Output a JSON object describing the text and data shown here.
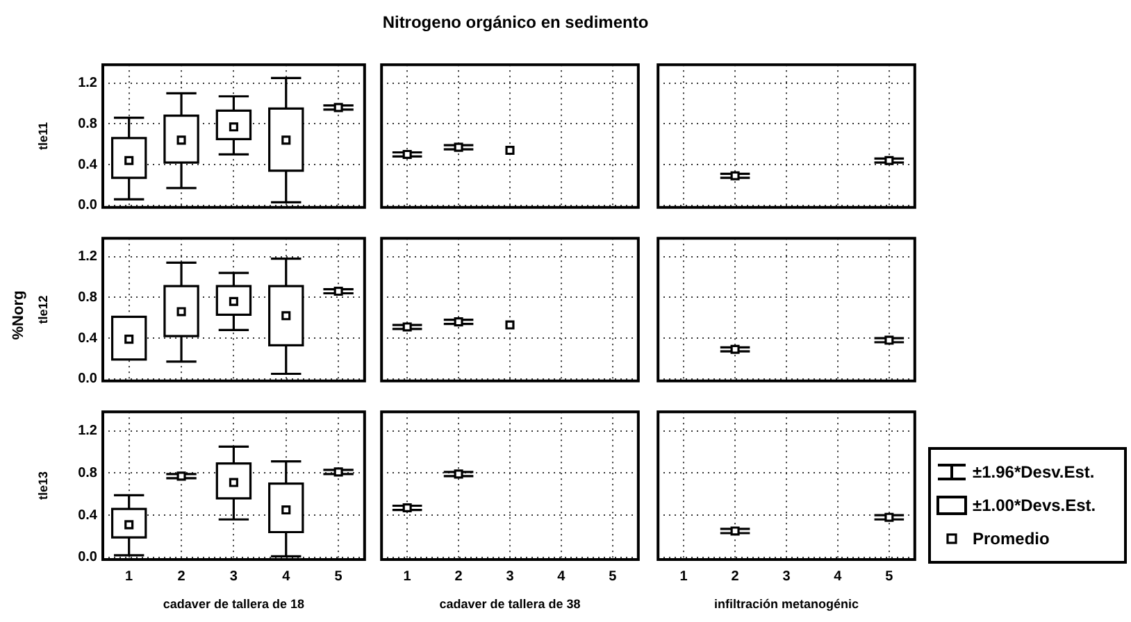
{
  "chart_data": [
    {
      "type": "box",
      "ylabel": "tle11",
      "categories": [
        "1",
        "2",
        "3",
        "4",
        "5"
      ],
      "boxes": [
        {
          "low": 0.06,
          "q1": 0.27,
          "median": 0.44,
          "q3": 0.66,
          "high": 0.86
        },
        {
          "low": 0.17,
          "q1": 0.42,
          "median": 0.64,
          "q3": 0.88,
          "high": 1.1
        },
        {
          "low": 0.5,
          "q1": 0.65,
          "median": 0.77,
          "q3": 0.93,
          "high": 1.07
        },
        {
          "low": 0.03,
          "q1": 0.34,
          "median": 0.64,
          "q3": 0.95,
          "high": 1.25
        },
        null
      ],
      "series": [
        {
          "type": "scatter",
          "values": [
            null,
            null,
            null,
            null,
            0.96
          ],
          "errors": [
            null,
            null,
            null,
            null,
            0.02
          ]
        }
      ],
      "marker": "square",
      "ylim": [
        -0.02,
        1.38
      ],
      "yticks": [
        {
          "value": 0,
          "label": "0.0"
        },
        {
          "value": 0.4,
          "label": "0.4"
        },
        {
          "value": 0.8,
          "label": "0.8"
        },
        {
          "value": 1.2,
          "label": "1.2"
        }
      ],
      "grid": true,
      "tick_labels": "y"
    },
    {
      "type": "scatter",
      "title": "Nitrogeno orgánico en sedimento",
      "categories": [
        "1",
        "2",
        "3",
        "4",
        "5"
      ],
      "values": [
        0.5,
        0.57,
        0.54,
        null,
        null
      ],
      "errors": [
        0.02,
        0.02,
        null,
        null,
        null
      ],
      "marker": "square",
      "ylim": [
        -0.02,
        1.38
      ],
      "yticks": [
        {
          "value": 0,
          "label": null
        },
        {
          "value": 0.4,
          "label": null
        },
        {
          "value": 0.8,
          "label": null
        },
        {
          "value": 1.2,
          "label": null
        }
      ],
      "grid": true,
      "tick_labels": false
    },
    {
      "type": "scatter",
      "categories": [
        "1",
        "2",
        "3",
        "4",
        "5"
      ],
      "values": [
        null,
        0.29,
        null,
        null,
        0.44
      ],
      "errors": [
        null,
        0.02,
        null,
        null,
        0.02
      ],
      "marker": "square",
      "ylim": [
        -0.02,
        1.38
      ],
      "yticks": [
        {
          "value": 0,
          "label": null
        },
        {
          "value": 0.4,
          "label": null
        },
        {
          "value": 0.8,
          "label": null
        },
        {
          "value": 1.2,
          "label": null
        }
      ],
      "grid": true,
      "tick_labels": false
    },
    {
      "type": "box",
      "ylabel": "tle12",
      "annotations": [
        "%Norg"
      ],
      "categories": [
        "1",
        "2",
        "3",
        "4",
        "5"
      ],
      "boxes": [
        {
          "low": 0.19,
          "q1": 0.19,
          "median": 0.39,
          "q3": 0.61,
          "high": 0.61
        },
        {
          "low": 0.17,
          "q1": 0.42,
          "median": 0.66,
          "q3": 0.91,
          "high": 1.14
        },
        {
          "low": 0.48,
          "q1": 0.63,
          "median": 0.76,
          "q3": 0.91,
          "high": 1.04
        },
        {
          "low": 0.05,
          "q1": 0.33,
          "median": 0.62,
          "q3": 0.91,
          "high": 1.18
        },
        null
      ],
      "series": [
        {
          "type": "scatter",
          "values": [
            null,
            null,
            null,
            null,
            0.86
          ],
          "errors": [
            null,
            null,
            null,
            null,
            0.02
          ]
        }
      ],
      "marker": "square",
      "ylim": [
        -0.02,
        1.38
      ],
      "yticks": [
        {
          "value": 0,
          "label": "0.0"
        },
        {
          "value": 0.4,
          "label": "0.4"
        },
        {
          "value": 0.8,
          "label": "0.8"
        },
        {
          "value": 1.2,
          "label": "1.2"
        }
      ],
      "grid": true,
      "tick_labels": "y"
    },
    {
      "type": "scatter",
      "categories": [
        "1",
        "2",
        "3",
        "4",
        "5"
      ],
      "values": [
        0.51,
        0.56,
        0.53,
        null,
        null
      ],
      "errors": [
        0.02,
        0.02,
        null,
        null,
        null
      ],
      "marker": "square",
      "ylim": [
        -0.02,
        1.38
      ],
      "yticks": [
        {
          "value": 0,
          "label": null
        },
        {
          "value": 0.4,
          "label": null
        },
        {
          "value": 0.8,
          "label": null
        },
        {
          "value": 1.2,
          "label": null
        }
      ],
      "grid": true,
      "tick_labels": false
    },
    {
      "type": "scatter",
      "categories": [
        "1",
        "2",
        "3",
        "4",
        "5"
      ],
      "values": [
        null,
        0.29,
        null,
        null,
        0.38
      ],
      "errors": [
        null,
        0.02,
        null,
        null,
        0.02
      ],
      "marker": "square",
      "ylim": [
        -0.02,
        1.38
      ],
      "yticks": [
        {
          "value": 0,
          "label": null
        },
        {
          "value": 0.4,
          "label": null
        },
        {
          "value": 0.8,
          "label": null
        },
        {
          "value": 1.2,
          "label": null
        }
      ],
      "grid": true,
      "tick_labels": false
    },
    {
      "type": "box",
      "ylabel": "tle13",
      "xlabel": "cadaver de tallera de 18",
      "categories": [
        "1",
        "2",
        "3",
        "4",
        "5"
      ],
      "boxes": [
        {
          "low": 0.02,
          "q1": 0.19,
          "median": 0.31,
          "q3": 0.46,
          "high": 0.59
        },
        null,
        {
          "low": 0.36,
          "q1": 0.56,
          "median": 0.71,
          "q3": 0.89,
          "high": 1.05
        },
        {
          "low": 0.01,
          "q1": 0.24,
          "median": 0.45,
          "q3": 0.7,
          "high": 0.91
        },
        null
      ],
      "series": [
        {
          "type": "scatter",
          "values": [
            null,
            0.77,
            null,
            null,
            0.81
          ],
          "errors": [
            null,
            0.02,
            null,
            null,
            0.02
          ]
        }
      ],
      "marker": "square",
      "ylim": [
        -0.02,
        1.38
      ],
      "yticks": [
        {
          "value": 0,
          "label": "0.0"
        },
        {
          "value": 0.4,
          "label": "0.4"
        },
        {
          "value": 0.8,
          "label": "0.8"
        },
        {
          "value": 1.2,
          "label": "1.2"
        }
      ],
      "grid": true
    },
    {
      "type": "scatter",
      "xlabel": "cadaver de tallera de 38",
      "categories": [
        "1",
        "2",
        "3",
        "4",
        "5"
      ],
      "values": [
        0.47,
        0.79,
        null,
        null,
        null
      ],
      "errors": [
        0.02,
        0.02,
        null,
        null,
        null
      ],
      "marker": "square",
      "ylim": [
        -0.02,
        1.38
      ],
      "yticks": [
        {
          "value": 0,
          "label": null
        },
        {
          "value": 0.4,
          "label": null
        },
        {
          "value": 0.8,
          "label": null
        },
        {
          "value": 1.2,
          "label": null
        }
      ],
      "grid": true,
      "tick_labels": "x"
    },
    {
      "type": "scatter",
      "xlabel": "infiltración metanogénic",
      "annotations": [
        "±1.96*Desv.Est.",
        "±1.00*Devs.Est.",
        "Promedio"
      ],
      "categories": [
        "1",
        "2",
        "3",
        "4",
        "5"
      ],
      "values": [
        null,
        0.25,
        null,
        null,
        0.38
      ],
      "errors": [
        null,
        0.02,
        null,
        null,
        0.02
      ],
      "marker": "square",
      "ylim": [
        -0.02,
        1.38
      ],
      "yticks": [
        {
          "value": 0,
          "label": null
        },
        {
          "value": 0.4,
          "label": null
        },
        {
          "value": 0.8,
          "label": null
        },
        {
          "value": 1.2,
          "label": null
        }
      ],
      "grid": true,
      "tick_labels": "x"
    }
  ]
}
